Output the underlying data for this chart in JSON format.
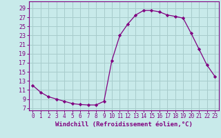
{
  "x": [
    0,
    1,
    2,
    3,
    4,
    5,
    6,
    7,
    8,
    9,
    10,
    11,
    12,
    13,
    14,
    15,
    16,
    17,
    18,
    19,
    20,
    21,
    22,
    23
  ],
  "y": [
    12,
    10.5,
    9.5,
    9,
    8.5,
    8,
    7.8,
    7.7,
    7.7,
    8.5,
    17.5,
    23,
    25.5,
    27.5,
    28.5,
    28.5,
    28.2,
    27.5,
    27.2,
    26.8,
    23.5,
    20,
    16.5,
    14
  ],
  "line_color": "#800080",
  "marker": "D",
  "markersize": 2.2,
  "linewidth": 0.9,
  "bg_color": "#c8eaea",
  "grid_color": "#a8cccc",
  "xlabel": "Windchill (Refroidissement éolien,°C)",
  "xlabel_fontsize": 6.5,
  "xticks": [
    0,
    1,
    2,
    3,
    4,
    5,
    6,
    7,
    8,
    9,
    10,
    11,
    12,
    13,
    14,
    15,
    16,
    17,
    18,
    19,
    20,
    21,
    22,
    23
  ],
  "yticks": [
    7,
    9,
    11,
    13,
    15,
    17,
    19,
    21,
    23,
    25,
    27,
    29
  ],
  "ylim": [
    6.5,
    30.5
  ],
  "xlim": [
    -0.5,
    23.5
  ],
  "tick_color": "#800080",
  "tick_fontsize": 6,
  "xtick_fontsize": 5.5
}
